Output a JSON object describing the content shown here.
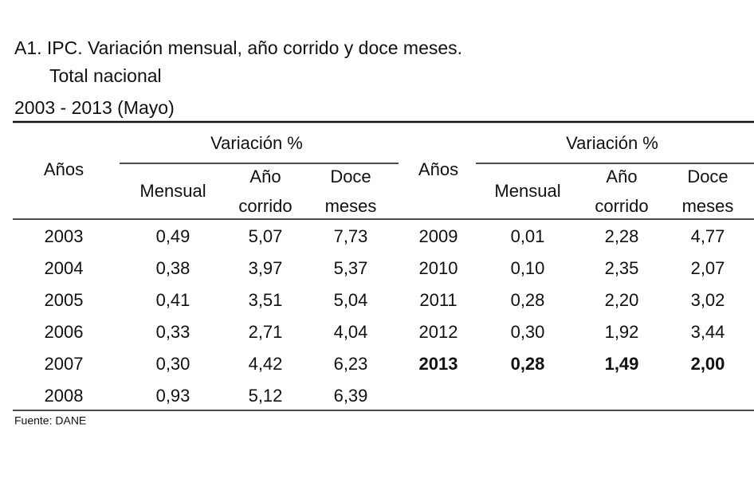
{
  "header": {
    "title": "A1. IPC. Variación mensual, año corrido y doce meses.",
    "subtitle": "Total nacional",
    "period": "2003 - 2013 (Mayo)"
  },
  "table": {
    "groups": [
      {
        "years_label": "Años",
        "group_label": "Variación %",
        "columns": [
          [
            "Mensual"
          ],
          [
            "Año",
            "corrido"
          ],
          [
            "Doce",
            "meses"
          ]
        ],
        "rows": [
          [
            "2003",
            "0,49",
            "5,07",
            "7,73"
          ],
          [
            "2004",
            "0,38",
            "3,97",
            "5,37"
          ],
          [
            "2005",
            "0,41",
            "3,51",
            "5,04"
          ],
          [
            "2006",
            "0,33",
            "2,71",
            "4,04"
          ],
          [
            "2007",
            "0,30",
            "4,42",
            "6,23"
          ],
          [
            "2008",
            "0,93",
            "5,12",
            "6,39"
          ]
        ]
      },
      {
        "years_label": "Años",
        "group_label": "Variación %",
        "columns": [
          [
            "Mensual"
          ],
          [
            "Año",
            "corrido"
          ],
          [
            "Doce",
            "meses"
          ]
        ],
        "rows": [
          [
            "2009",
            "0,01",
            "2,28",
            "4,77"
          ],
          [
            "2010",
            "0,10",
            "2,35",
            "2,07"
          ],
          [
            "2011",
            "0,28",
            "2,20",
            "3,02"
          ],
          [
            "2012",
            "0,30",
            "1,92",
            "3,44"
          ],
          [
            "2013",
            "0,28",
            "1,49",
            "2,00"
          ]
        ]
      }
    ]
  },
  "footer": {
    "source": "Fuente: DANE"
  }
}
